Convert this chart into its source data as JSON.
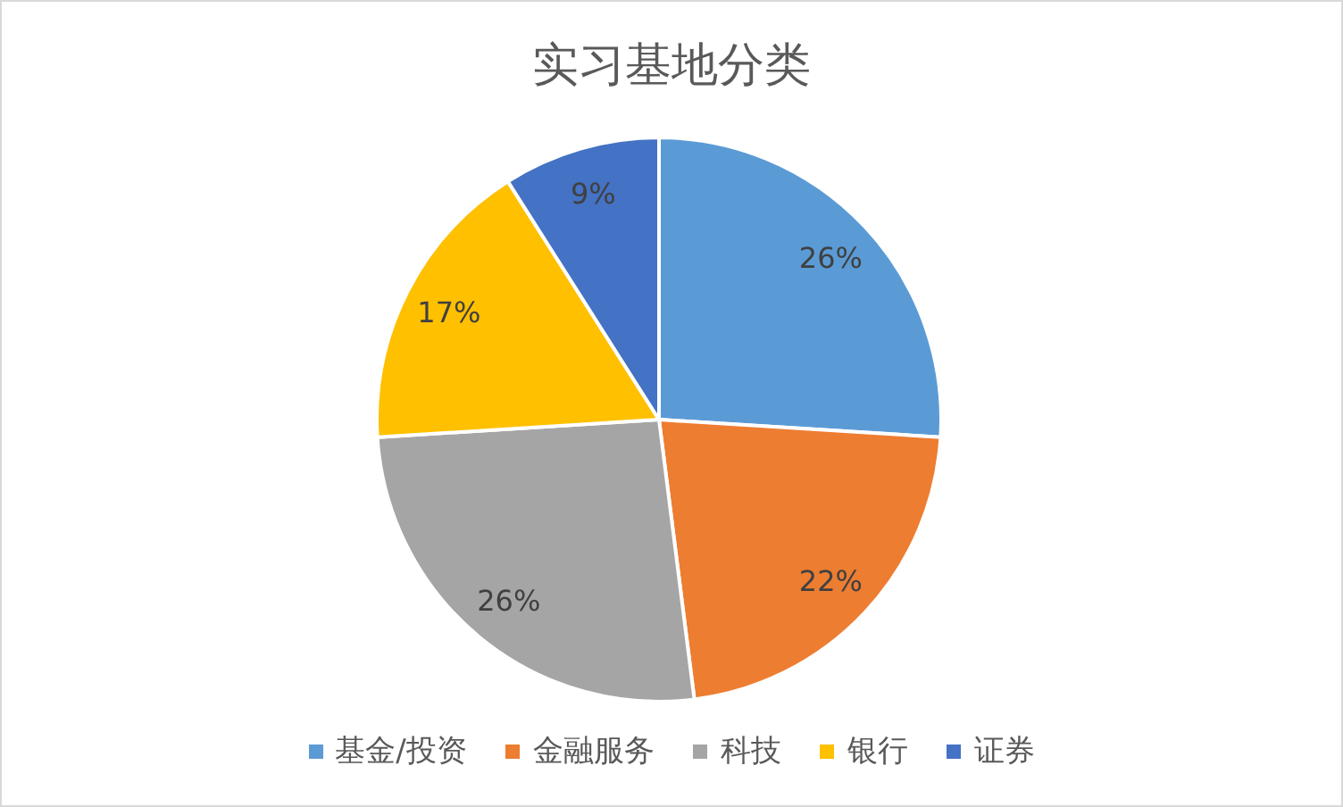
{
  "chart_data": {
    "type": "pie",
    "title": "实习基地分类",
    "categories": [
      "基金/投资",
      "金融服务",
      "科技",
      "银行",
      "证券"
    ],
    "values": [
      26,
      22,
      26,
      17,
      9
    ],
    "colors": [
      "#5b9bd5",
      "#ed7d31",
      "#a5a5a5",
      "#ffc000",
      "#4472c4"
    ],
    "value_labels": [
      "26%",
      "22%",
      "26%",
      "17%",
      "9%"
    ],
    "legend": "bottom"
  }
}
